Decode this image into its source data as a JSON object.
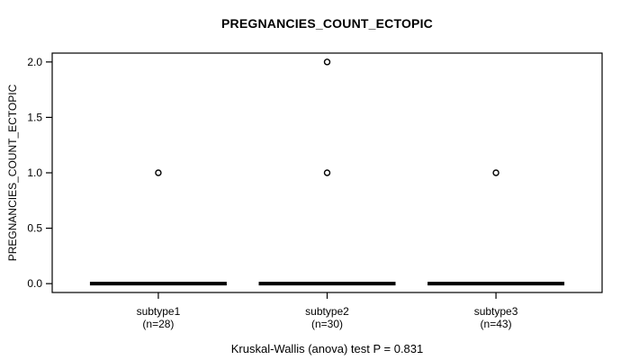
{
  "chart_data": {
    "type": "boxplot",
    "title": "PREGNANCIES_COUNT_ECTOPIC",
    "ylabel": "PREGNANCIES_COUNT_ECTOPIC",
    "footer": "Kruskal-Wallis (anova) test P = 0.831",
    "statistical_test": {
      "name": "Kruskal-Wallis (anova)",
      "p_value": 0.831
    },
    "ylim": [
      -0.08,
      2.08
    ],
    "yticks": [
      0,
      0.5,
      1,
      1.5,
      2
    ],
    "ytick_labels": [
      "0.0",
      "0.5",
      "1.0",
      "1.5",
      "2.0"
    ],
    "grid": false,
    "legend": "none",
    "line_color": "#000000",
    "background_color": "#ffffff",
    "groups": [
      {
        "label": "subtype1",
        "n_label": "(n=28)",
        "n": 28,
        "box": {
          "min": 0,
          "q1": 0,
          "median": 0,
          "q3": 0,
          "max": 0
        },
        "outliers": [
          1
        ]
      },
      {
        "label": "subtype2",
        "n_label": "(n=30)",
        "n": 30,
        "box": {
          "min": 0,
          "q1": 0,
          "median": 0,
          "q3": 0,
          "max": 0
        },
        "outliers": [
          1,
          2
        ]
      },
      {
        "label": "subtype3",
        "n_label": "(n=43)",
        "n": 43,
        "box": {
          "min": 0,
          "q1": 0,
          "median": 0,
          "q3": 0,
          "max": 0
        },
        "outliers": [
          1
        ]
      }
    ]
  }
}
